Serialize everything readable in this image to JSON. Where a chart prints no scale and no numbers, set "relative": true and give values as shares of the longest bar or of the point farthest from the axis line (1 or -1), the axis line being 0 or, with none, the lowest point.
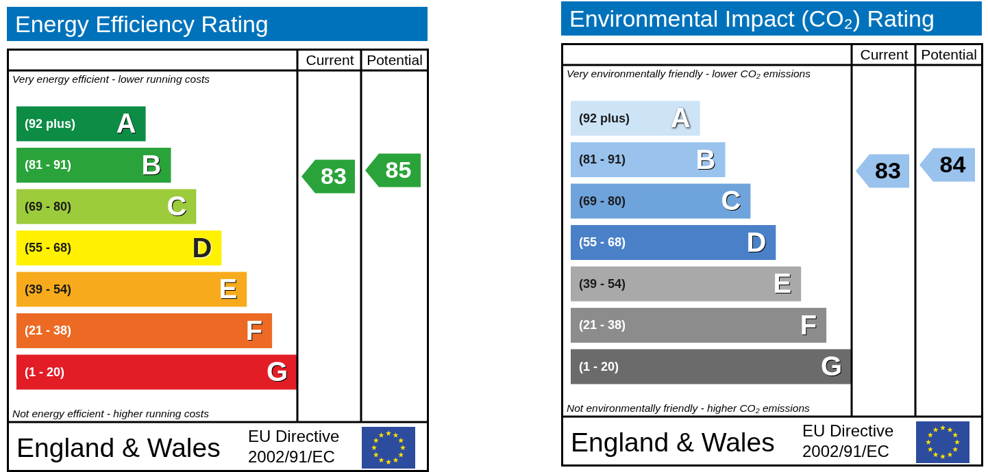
{
  "chart_data": [
    {
      "type": "bar",
      "orientation": "horizontal",
      "relative": true,
      "title": "Energy Efficiency Rating",
      "categories": [
        "A",
        "B",
        "C",
        "D",
        "E",
        "F",
        "G"
      ],
      "values": [
        0.46,
        0.55,
        0.64,
        0.73,
        0.82,
        0.91,
        1
      ],
      "colors": [
        "#0c8c45",
        "#2aa33a",
        "#9ccb3b",
        "#fff100",
        "#f7ab1c",
        "#ec6a24",
        "#e21d26"
      ],
      "annotations": [
        "Current",
        "Potential",
        "83",
        "85",
        "Very energy efficient - lower running costs",
        "Not energy efficient - higher running costs",
        "England & Wales",
        "EU Directive 2002/91/EC",
        "(92 plus)",
        "(81 - 91)",
        "(69 - 80)",
        "(55 - 68)",
        "(39 - 54)",
        "(21 - 38)",
        "(1 - 20)"
      ]
    },
    {
      "type": "bar",
      "orientation": "horizontal",
      "relative": true,
      "title": "Environmental Impact (CO₂) Rating",
      "categories": [
        "A",
        "B",
        "C",
        "D",
        "E",
        "F",
        "G"
      ],
      "values": [
        0.46,
        0.55,
        0.64,
        0.73,
        0.82,
        0.91,
        1
      ],
      "colors": [
        "#cde4f7",
        "#99c2ed",
        "#6fa3dc",
        "#4a80c8",
        "#a9a9a9",
        "#8c8c8c",
        "#6b6b6b"
      ],
      "annotations": [
        "Current",
        "Potential",
        "83",
        "84",
        "Very environmentally friendly - lower CO₂ emissions",
        "Not environmentally friendly - higher CO₂ emissions",
        "England & Wales",
        "EU Directive 2002/91/EC",
        "(92 plus)",
        "(81 - 91)",
        "(69 - 80)",
        "(55 - 68)",
        "(39 - 54)",
        "(21 - 38)",
        "(1 - 20)"
      ]
    }
  ]
}
